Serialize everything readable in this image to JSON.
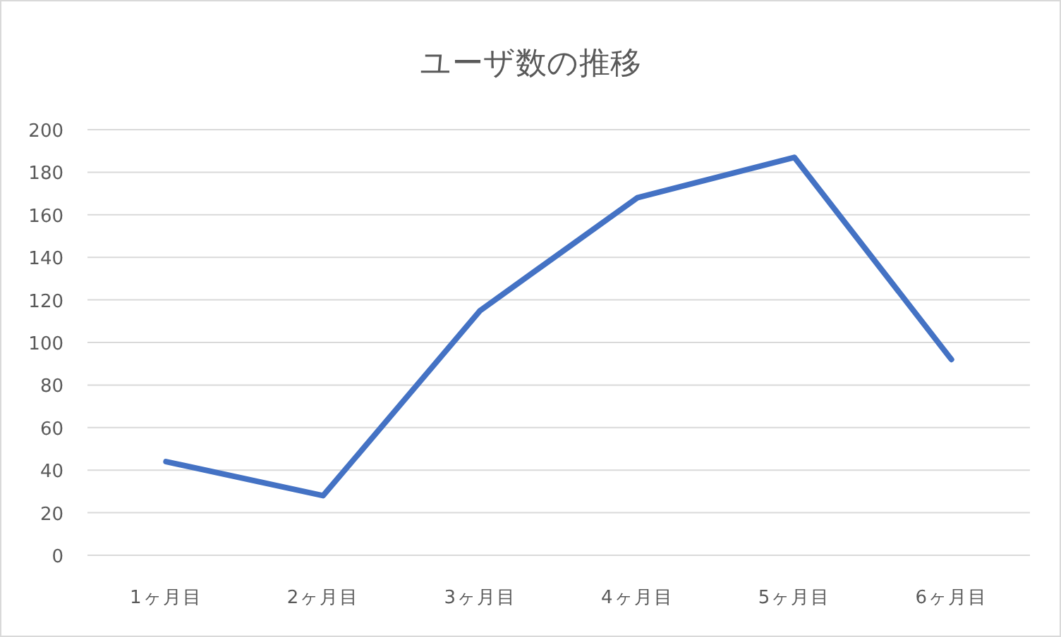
{
  "chart_data": {
    "type": "line",
    "title": "ユーザ数の推移",
    "categories": [
      "1ヶ月目",
      "2ヶ月目",
      "3ヶ月目",
      "4ヶ月目",
      "5ヶ月目",
      "6ヶ月目"
    ],
    "series": [
      {
        "color": "#4472c4",
        "values": [
          44,
          28,
          115,
          168,
          187,
          92
        ]
      }
    ],
    "ylim": [
      0,
      200
    ],
    "yticks": [
      0,
      20,
      40,
      60,
      80,
      100,
      120,
      140,
      160,
      180,
      200
    ],
    "grid": "y",
    "marker": "none",
    "line_style": "solid"
  }
}
